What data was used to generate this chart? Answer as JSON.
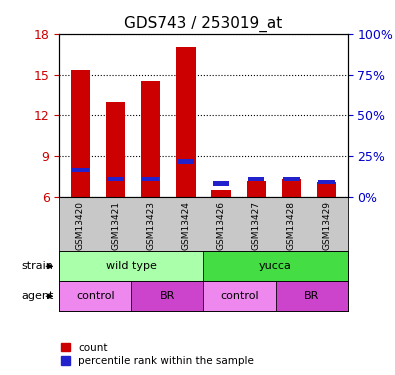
{
  "title": "GDS743 / 253019_at",
  "categories": [
    "GSM13420",
    "GSM13421",
    "GSM13423",
    "GSM13424",
    "GSM13426",
    "GSM13427",
    "GSM13428",
    "GSM13429"
  ],
  "red_values": [
    15.3,
    13.0,
    14.5,
    17.0,
    6.5,
    7.2,
    7.3,
    7.1
  ],
  "blue_values": [
    8.0,
    7.3,
    7.3,
    8.6,
    7.0,
    7.3,
    7.3,
    7.1
  ],
  "ylim_left": [
    6,
    18
  ],
  "ylim_right": [
    0,
    100
  ],
  "yticks_left": [
    6,
    9,
    12,
    15,
    18
  ],
  "yticks_right": [
    0,
    25,
    50,
    75,
    100
  ],
  "ytick_labels_right": [
    "0%",
    "25%",
    "50%",
    "75%",
    "100%"
  ],
  "bar_width": 0.55,
  "red_color": "#CC0000",
  "blue_color": "#2222CC",
  "tick_color_left": "#CC0000",
  "tick_color_right": "#0000CC",
  "sample_bg": "#C8C8C8",
  "wild_type_color": "#AAFFAA",
  "yucca_color": "#44DD44",
  "control_color": "#EE88EE",
  "br_color": "#CC44CC",
  "bg_color": "#ffffff"
}
